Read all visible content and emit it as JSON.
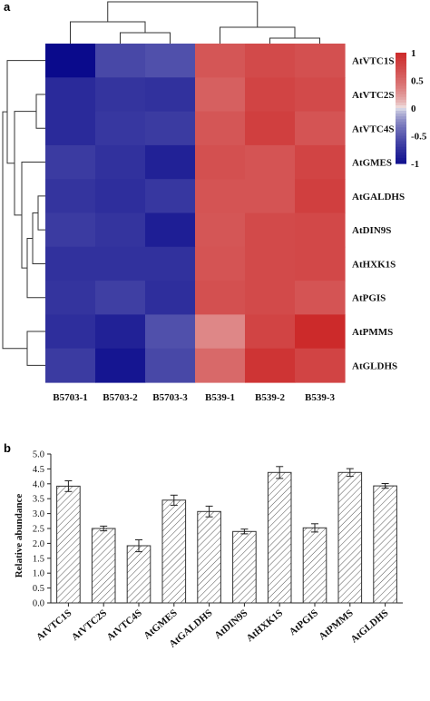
{
  "chart_data": [
    {
      "panel": "a",
      "type": "heatmap",
      "columns": [
        "B5703-1",
        "B5703-2",
        "B5703-3",
        "B539-1",
        "B539-2",
        "B539-3"
      ],
      "rows": [
        "AtVTC1S",
        "AtVTC2S",
        "AtVTC4S",
        "AtGMES",
        "AtGALDHS",
        "AtDIN9S",
        "AtHXK1S",
        "AtPGIS",
        "AtPMMS",
        "AtGLDHS"
      ],
      "values": [
        [
          -1.15,
          -0.65,
          -0.6,
          0.7,
          0.8,
          0.75
        ],
        [
          -0.88,
          -0.8,
          -0.82,
          0.62,
          0.85,
          0.8
        ],
        [
          -0.88,
          -0.78,
          -0.75,
          0.7,
          0.9,
          0.72
        ],
        [
          -0.75,
          -0.82,
          -0.95,
          0.75,
          0.72,
          0.85
        ],
        [
          -0.8,
          -0.85,
          -0.78,
          0.72,
          0.72,
          0.9
        ],
        [
          -0.75,
          -0.8,
          -0.98,
          0.7,
          0.8,
          0.82
        ],
        [
          -0.82,
          -0.82,
          -0.82,
          0.72,
          0.8,
          0.82
        ],
        [
          -0.8,
          -0.72,
          -0.85,
          0.75,
          0.8,
          0.72
        ],
        [
          -0.85,
          -0.95,
          -0.6,
          0.35,
          0.85,
          1.1
        ],
        [
          -0.75,
          -1.05,
          -0.65,
          0.55,
          1.0,
          0.85
        ]
      ],
      "colorbar": {
        "min": -1,
        "max": 1,
        "ticks": [
          1,
          0.5,
          0,
          -0.5,
          -1
        ],
        "low_color": "#0a0a8c",
        "mid_color": "#f2f2f2",
        "high_color": "#cc2a2a"
      },
      "dendrogram": "present"
    },
    {
      "panel": "b",
      "type": "bar",
      "categories": [
        "AtVTC1S",
        "AtVTC2S",
        "AtVTC4S",
        "AtGMES",
        "AtGALDHS",
        "AtDIN9S",
        "AtHXK1S",
        "AtPGIS",
        "AtPMMS",
        "AtGLDHS"
      ],
      "values": [
        3.92,
        2.5,
        1.92,
        3.45,
        3.07,
        2.4,
        4.38,
        2.52,
        4.38,
        3.93
      ],
      "errors": [
        0.18,
        0.08,
        0.2,
        0.17,
        0.18,
        0.08,
        0.2,
        0.14,
        0.13,
        0.08
      ],
      "ylabel": "Relative abundance",
      "ylim": [
        0,
        5
      ],
      "yticks": [
        0,
        0.5,
        1.0,
        1.5,
        2.0,
        2.5,
        3.0,
        3.5,
        4.0,
        4.5,
        5.0
      ],
      "ytick_labels": [
        "0.0",
        "0.5",
        "1.0",
        "1.5",
        "2.0",
        "2.5",
        "3.0",
        "3.5",
        "4.0",
        "4.5",
        "5.0"
      ],
      "bar_fill": "hatched"
    }
  ]
}
